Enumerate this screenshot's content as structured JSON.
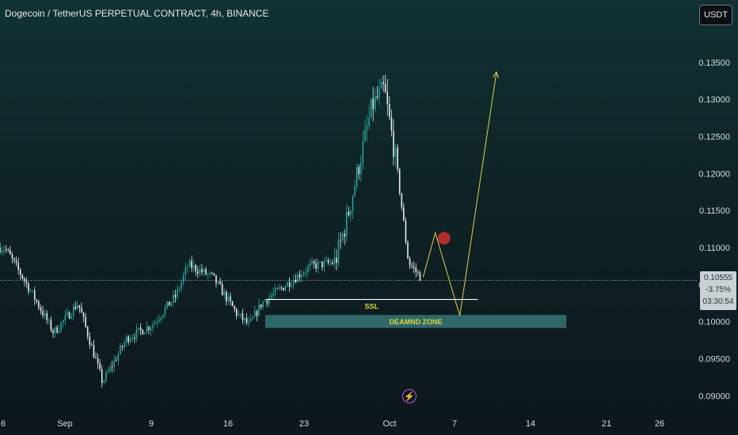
{
  "header": {
    "title": "Dogecoin / TetherUS PERPETUAL CONTRACT, 4h, BINANCE",
    "currency_button": "USDT"
  },
  "price_label": {
    "price": "0.10555",
    "change": "-3.75%",
    "countdown": "03:30:54"
  },
  "colors": {
    "candle_up": "#26a69a",
    "candle_down": "#e6ebee",
    "projection": "#dcd640",
    "ssl_line": "#ffffff",
    "demand_zone": "#3b8282",
    "marker": "#c62d2d",
    "bolt": "#c34fe0"
  },
  "icons": {
    "bolt": "lightning-icon"
  },
  "chart_data": {
    "type": "candlestick",
    "timeframe": "4h",
    "x_ticks": [
      "6",
      "Sep",
      "9",
      "16",
      "23",
      "Oct",
      "7",
      "14",
      "21",
      "26"
    ],
    "y_ticks": [
      "0.09000",
      "0.09500",
      "0.10000",
      "0.10500",
      "0.11000",
      "0.11500",
      "0.12000",
      "0.12500",
      "0.13000",
      "0.13500"
    ],
    "ylim": [
      0.0895,
      0.1368
    ],
    "current_price": 0.10555,
    "price_path": [
      [
        "2024-08-29",
        0.11
      ],
      [
        "2024-08-31",
        0.1045
      ],
      [
        "2024-09-02",
        0.0985
      ],
      [
        "2024-09-04",
        0.1025
      ],
      [
        "2024-09-06",
        0.0918
      ],
      [
        "2024-09-08",
        0.0978
      ],
      [
        "2024-09-10",
        0.0995
      ],
      [
        "2024-09-12",
        0.1035
      ],
      [
        "2024-09-13",
        0.1077
      ],
      [
        "2024-09-15",
        0.106
      ],
      [
        "2024-09-17",
        0.101
      ],
      [
        "2024-09-18",
        0.0995
      ],
      [
        "2024-09-19",
        0.1025
      ],
      [
        "2024-09-21",
        0.105
      ],
      [
        "2024-09-23",
        0.1075
      ],
      [
        "2024-09-25",
        0.108
      ],
      [
        "2024-09-26",
        0.114
      ],
      [
        "2024-09-28",
        0.129
      ],
      [
        "2024-09-29",
        0.1315
      ],
      [
        "2024-09-30",
        0.1215
      ],
      [
        "2024-10-01",
        0.108
      ],
      [
        "2024-10-02",
        0.106
      ]
    ],
    "annotations": {
      "ssl": {
        "label": "SSL",
        "price": 0.103,
        "from": "2024-09-18",
        "to": "2024-10-07"
      },
      "demand_zone": {
        "label": "DEAMND ZONE",
        "price_low": 0.09915,
        "price_high": 0.1009,
        "from": "2024-09-18",
        "to": "2024-10-13"
      },
      "projection_path": [
        [
          "2024-10-02",
          0.106
        ],
        [
          "2024-10-03",
          0.112
        ],
        [
          "2024-10-05",
          0.1008
        ],
        [
          "2024-10-08",
          0.1337
        ]
      ],
      "marker": {
        "date": "2024-10-03",
        "price": 0.1112
      }
    }
  }
}
